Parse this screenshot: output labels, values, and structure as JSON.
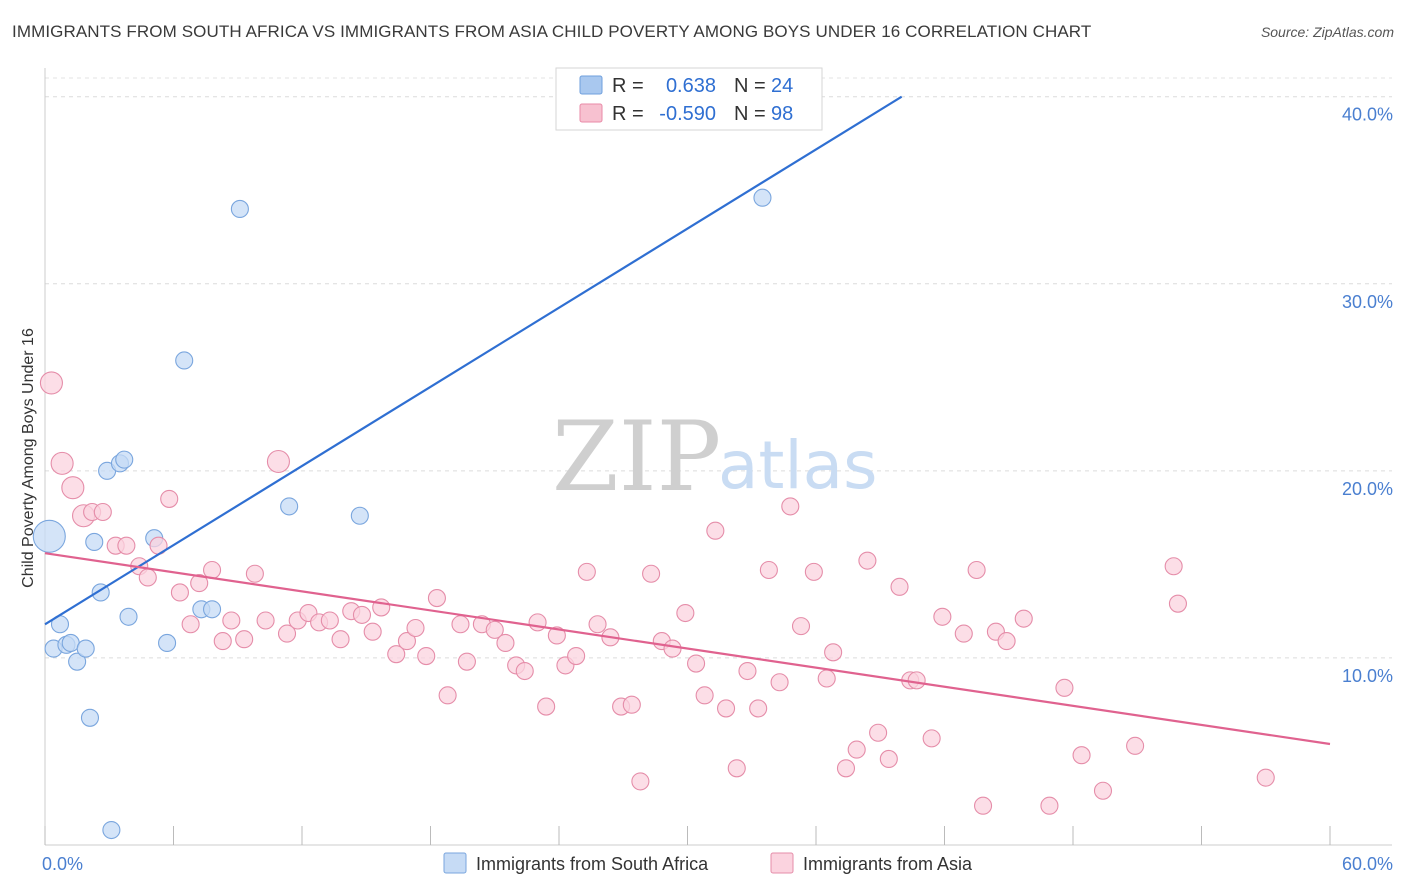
{
  "header": {
    "title": "IMMIGRANTS FROM SOUTH AFRICA VS IMMIGRANTS FROM ASIA CHILD POVERTY AMONG BOYS UNDER 16 CORRELATION CHART",
    "source": "Source: ZipAtlas.com"
  },
  "watermark": {
    "zip": "ZIP",
    "atlas": "atlas"
  },
  "legend_box": {
    "rows": [
      {
        "r_label": "R =",
        "r_value": "0.638",
        "n_label": "N =",
        "n_value": "24",
        "color": "#a9c8ef",
        "stroke": "#6f9fdc"
      },
      {
        "r_label": "R =",
        "r_value": "-0.590",
        "n_label": "N =",
        "n_value": "98",
        "color": "#f7c1d0",
        "stroke": "#e88aa7"
      }
    ]
  },
  "bottom_legend": {
    "items": [
      {
        "label": "Immigrants from South Africa",
        "color": "#c6dbf5",
        "stroke": "#7aa6de"
      },
      {
        "label": "Immigrants from Asia",
        "color": "#fbd3df",
        "stroke": "#e58da9"
      }
    ]
  },
  "chart_data": {
    "type": "scatter",
    "title": "IMMIGRANTS FROM SOUTH AFRICA VS IMMIGRANTS FROM ASIA CHILD POVERTY AMONG BOYS UNDER 16 CORRELATION CHART",
    "xlabel": "",
    "ylabel": "Child Poverty Among Boys Under 16",
    "xlim": [
      0,
      60
    ],
    "ylim": [
      0,
      41
    ],
    "x_tick_labels": [
      {
        "value": 0,
        "label": "0.0%"
      },
      {
        "value": 60,
        "label": "60.0%"
      }
    ],
    "x_minor_ticks": [
      0,
      6,
      12,
      18,
      24,
      30,
      36,
      42,
      48,
      54,
      60
    ],
    "y_ticks": [
      {
        "value": 10,
        "label": "10.0%"
      },
      {
        "value": 20,
        "label": "20.0%"
      },
      {
        "value": 30,
        "label": "30.0%"
      },
      {
        "value": 40,
        "label": "40.0%"
      }
    ],
    "grid": true,
    "series": [
      {
        "name": "Immigrants from South Africa",
        "color": "#7aa6de",
        "fill": "#c6dbf5",
        "line_color": "#2f6fd2",
        "trend": {
          "x": [
            0,
            40
          ],
          "y": [
            11.8,
            40.0
          ]
        },
        "points": [
          {
            "x": 0.2,
            "y": 16.5,
            "size": 3
          },
          {
            "x": 0.4,
            "y": 10.5
          },
          {
            "x": 0.7,
            "y": 11.8
          },
          {
            "x": 1.0,
            "y": 10.7
          },
          {
            "x": 1.2,
            "y": 10.8
          },
          {
            "x": 1.5,
            "y": 9.8
          },
          {
            "x": 1.9,
            "y": 10.5
          },
          {
            "x": 2.1,
            "y": 6.8
          },
          {
            "x": 2.3,
            "y": 16.2
          },
          {
            "x": 2.6,
            "y": 13.5
          },
          {
            "x": 2.9,
            "y": 20.0
          },
          {
            "x": 3.1,
            "y": 0.8
          },
          {
            "x": 3.5,
            "y": 20.4
          },
          {
            "x": 3.7,
            "y": 20.6
          },
          {
            "x": 3.9,
            "y": 12.2
          },
          {
            "x": 5.1,
            "y": 16.4
          },
          {
            "x": 5.7,
            "y": 10.8
          },
          {
            "x": 6.5,
            "y": 25.9
          },
          {
            "x": 7.3,
            "y": 12.6
          },
          {
            "x": 7.8,
            "y": 12.6
          },
          {
            "x": 9.1,
            "y": 34.0
          },
          {
            "x": 11.4,
            "y": 18.1
          },
          {
            "x": 14.7,
            "y": 17.6
          },
          {
            "x": 33.5,
            "y": 34.6
          }
        ]
      },
      {
        "name": "Immigrants from Asia",
        "color": "#e58da9",
        "fill": "#fbd3df",
        "line_color": "#e0628f",
        "trend": {
          "x": [
            0,
            60
          ],
          "y": [
            15.6,
            5.4
          ]
        },
        "points": [
          {
            "x": 0.3,
            "y": 24.7,
            "size": 2
          },
          {
            "x": 0.8,
            "y": 20.4,
            "size": 2
          },
          {
            "x": 1.3,
            "y": 19.1,
            "size": 2
          },
          {
            "x": 1.8,
            "y": 17.6,
            "size": 2
          },
          {
            "x": 2.2,
            "y": 17.8
          },
          {
            "x": 2.7,
            "y": 17.8
          },
          {
            "x": 3.3,
            "y": 16.0
          },
          {
            "x": 3.8,
            "y": 16.0
          },
          {
            "x": 4.4,
            "y": 14.9
          },
          {
            "x": 4.8,
            "y": 14.3
          },
          {
            "x": 5.3,
            "y": 16.0
          },
          {
            "x": 5.8,
            "y": 18.5
          },
          {
            "x": 6.3,
            "y": 13.5
          },
          {
            "x": 6.8,
            "y": 11.8
          },
          {
            "x": 7.2,
            "y": 14.0
          },
          {
            "x": 7.8,
            "y": 14.7
          },
          {
            "x": 8.3,
            "y": 10.9
          },
          {
            "x": 8.7,
            "y": 12.0
          },
          {
            "x": 9.3,
            "y": 11.0
          },
          {
            "x": 9.8,
            "y": 14.5
          },
          {
            "x": 10.3,
            "y": 12.0
          },
          {
            "x": 10.9,
            "y": 20.5,
            "size": 2
          },
          {
            "x": 11.3,
            "y": 11.3
          },
          {
            "x": 11.8,
            "y": 12.0
          },
          {
            "x": 12.3,
            "y": 12.4
          },
          {
            "x": 12.8,
            "y": 11.9
          },
          {
            "x": 13.3,
            "y": 12.0
          },
          {
            "x": 13.8,
            "y": 11.0
          },
          {
            "x": 14.3,
            "y": 12.5
          },
          {
            "x": 14.8,
            "y": 12.3
          },
          {
            "x": 15.3,
            "y": 11.4
          },
          {
            "x": 15.7,
            "y": 12.7
          },
          {
            "x": 16.4,
            "y": 10.2
          },
          {
            "x": 16.9,
            "y": 10.9
          },
          {
            "x": 17.3,
            "y": 11.6
          },
          {
            "x": 17.8,
            "y": 10.1
          },
          {
            "x": 18.3,
            "y": 13.2
          },
          {
            "x": 18.8,
            "y": 8.0
          },
          {
            "x": 19.4,
            "y": 11.8
          },
          {
            "x": 19.7,
            "y": 9.8
          },
          {
            "x": 20.4,
            "y": 11.8
          },
          {
            "x": 21.0,
            "y": 11.5
          },
          {
            "x": 21.5,
            "y": 10.8
          },
          {
            "x": 22.0,
            "y": 9.6
          },
          {
            "x": 22.4,
            "y": 9.3
          },
          {
            "x": 23.0,
            "y": 11.9
          },
          {
            "x": 23.4,
            "y": 7.4
          },
          {
            "x": 23.9,
            "y": 11.2
          },
          {
            "x": 24.3,
            "y": 9.6
          },
          {
            "x": 24.8,
            "y": 10.1
          },
          {
            "x": 25.3,
            "y": 14.6
          },
          {
            "x": 25.8,
            "y": 11.8
          },
          {
            "x": 26.4,
            "y": 11.1
          },
          {
            "x": 26.9,
            "y": 7.4
          },
          {
            "x": 27.4,
            "y": 7.5
          },
          {
            "x": 27.8,
            "y": 3.4
          },
          {
            "x": 28.3,
            "y": 14.5
          },
          {
            "x": 28.8,
            "y": 10.9
          },
          {
            "x": 29.3,
            "y": 10.5
          },
          {
            "x": 29.9,
            "y": 12.4
          },
          {
            "x": 30.4,
            "y": 9.7
          },
          {
            "x": 30.8,
            "y": 8.0
          },
          {
            "x": 31.3,
            "y": 16.8
          },
          {
            "x": 31.8,
            "y": 7.3
          },
          {
            "x": 32.3,
            "y": 4.1
          },
          {
            "x": 32.8,
            "y": 9.3
          },
          {
            "x": 33.3,
            "y": 7.3
          },
          {
            "x": 33.8,
            "y": 14.7
          },
          {
            "x": 34.3,
            "y": 8.7
          },
          {
            "x": 34.8,
            "y": 18.1
          },
          {
            "x": 35.3,
            "y": 11.7
          },
          {
            "x": 35.9,
            "y": 14.6
          },
          {
            "x": 36.5,
            "y": 8.9
          },
          {
            "x": 36.8,
            "y": 10.3
          },
          {
            "x": 37.4,
            "y": 4.1
          },
          {
            "x": 37.9,
            "y": 5.1
          },
          {
            "x": 38.4,
            "y": 15.2
          },
          {
            "x": 38.9,
            "y": 6.0
          },
          {
            "x": 39.4,
            "y": 4.6
          },
          {
            "x": 39.9,
            "y": 13.8
          },
          {
            "x": 40.4,
            "y": 8.8
          },
          {
            "x": 40.7,
            "y": 8.8
          },
          {
            "x": 41.4,
            "y": 5.7
          },
          {
            "x": 41.9,
            "y": 12.2
          },
          {
            "x": 42.9,
            "y": 11.3
          },
          {
            "x": 43.5,
            "y": 14.7
          },
          {
            "x": 43.8,
            "y": 2.1
          },
          {
            "x": 44.4,
            "y": 11.4
          },
          {
            "x": 44.9,
            "y": 10.9
          },
          {
            "x": 45.7,
            "y": 12.1
          },
          {
            "x": 46.9,
            "y": 2.1
          },
          {
            "x": 47.6,
            "y": 8.4
          },
          {
            "x": 48.4,
            "y": 4.8
          },
          {
            "x": 49.4,
            "y": 2.9
          },
          {
            "x": 50.9,
            "y": 5.3
          },
          {
            "x": 52.7,
            "y": 14.9
          },
          {
            "x": 52.9,
            "y": 12.9
          },
          {
            "x": 57.0,
            "y": 3.6
          }
        ]
      }
    ]
  }
}
